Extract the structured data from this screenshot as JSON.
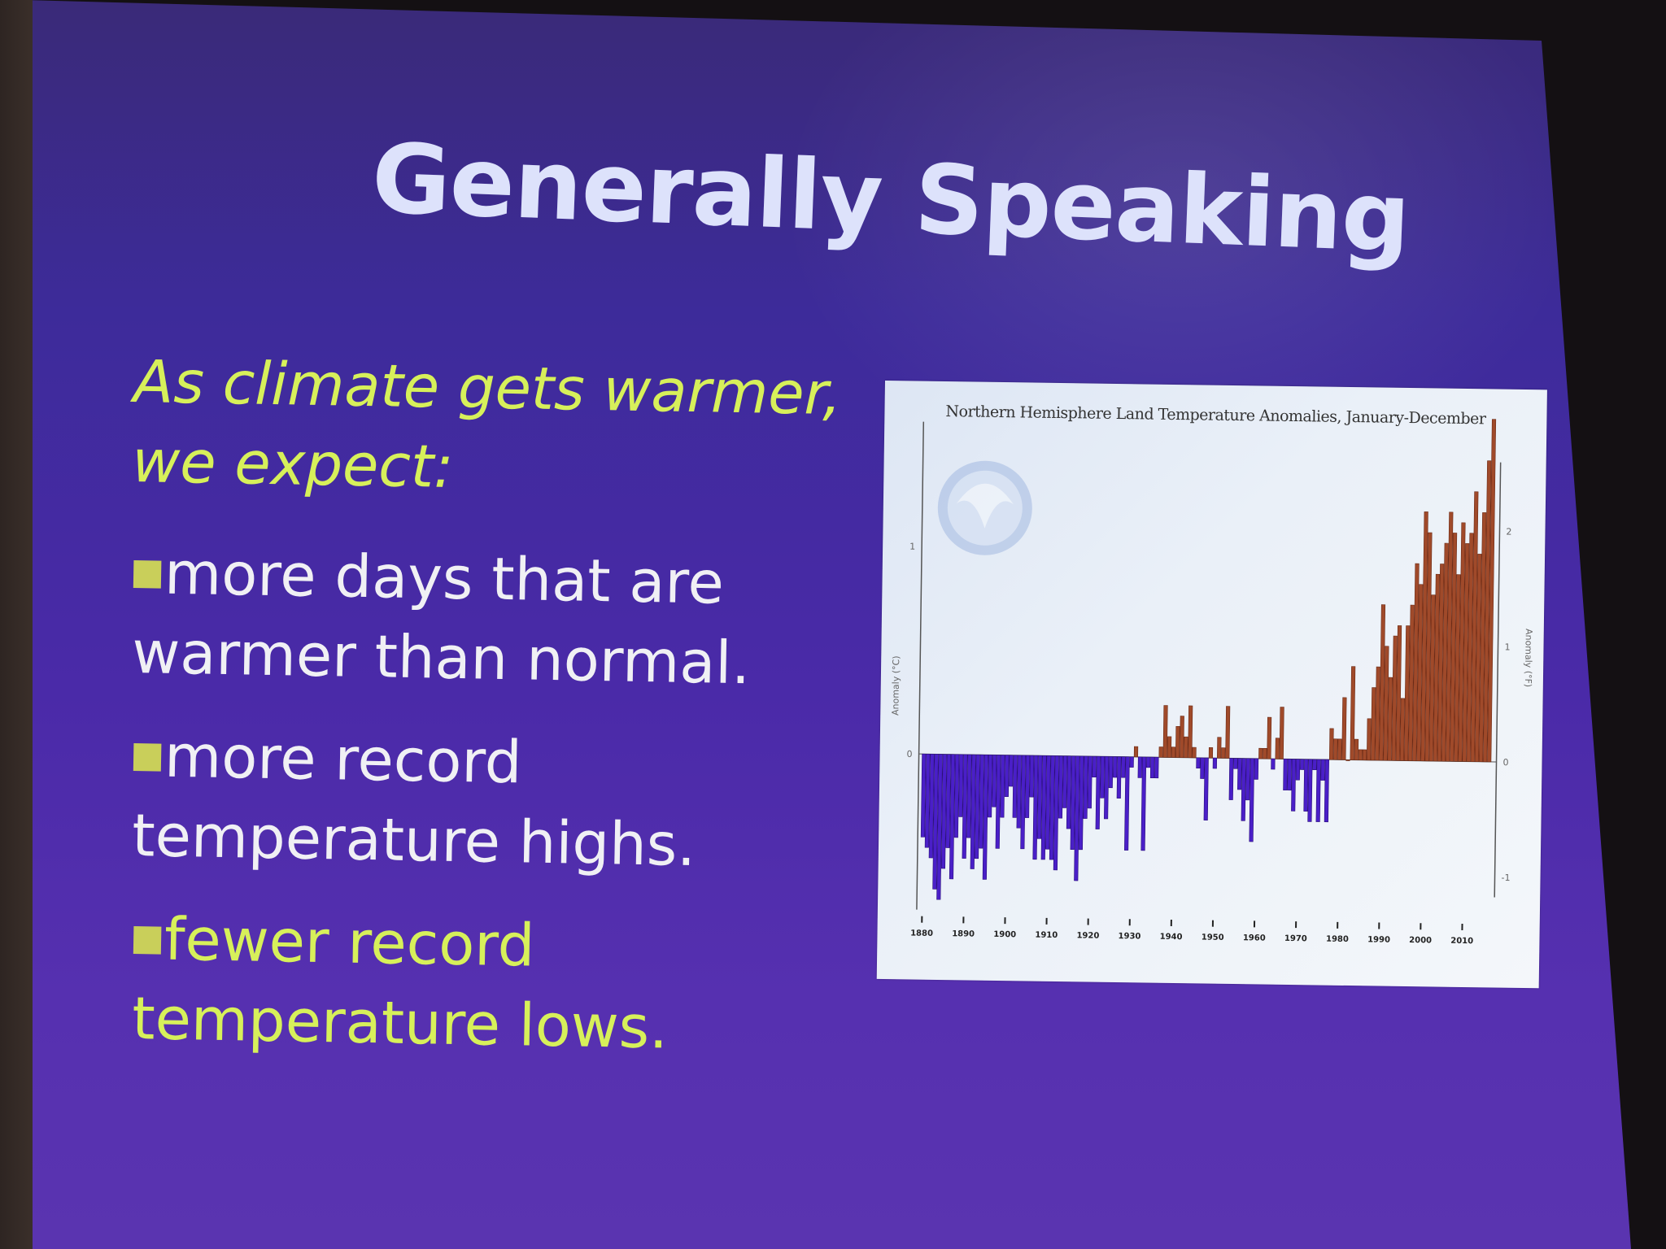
{
  "slide": {
    "title": "Generally Speaking",
    "intro": "As climate gets warmer, we expect:",
    "bullets": [
      {
        "text": "more days that are warmer than normal."
      },
      {
        "text": "more record temperature highs."
      },
      {
        "text": "fewer record temperature lows."
      }
    ]
  },
  "colors": {
    "title": "#dde2fb",
    "highlight": "#d7f05a",
    "body_text": "#f0f0f4",
    "negative_bar": "#4a1fc8",
    "positive_bar": "#a04a2a"
  },
  "logo": {
    "icon": "noaa-logo-icon"
  },
  "chart_data": {
    "type": "bar",
    "title": "Northern Hemisphere Land Temperature Anomalies, January-December",
    "ylabel_left": "Anomaly (°C)",
    "ylabel_right": "Anomaly (°F)",
    "ylim": [
      -0.75,
      1.6
    ],
    "x_ticks": [
      "1880",
      "1890",
      "1900",
      "1910",
      "1920",
      "1930",
      "1940",
      "1950",
      "1960",
      "1970",
      "1980",
      "1990",
      "2000",
      "2010"
    ],
    "left_y_ticks": [
      "1",
      "0"
    ],
    "right_y_ticks": [
      "2",
      "1",
      "0",
      "-1"
    ],
    "x": [
      1880,
      1881,
      1882,
      1883,
      1884,
      1885,
      1886,
      1887,
      1888,
      1889,
      1890,
      1891,
      1892,
      1893,
      1894,
      1895,
      1896,
      1897,
      1898,
      1899,
      1900,
      1901,
      1902,
      1903,
      1904,
      1905,
      1906,
      1907,
      1908,
      1909,
      1910,
      1911,
      1912,
      1913,
      1914,
      1915,
      1916,
      1917,
      1918,
      1919,
      1920,
      1921,
      1922,
      1923,
      1924,
      1925,
      1926,
      1927,
      1928,
      1929,
      1930,
      1931,
      1932,
      1933,
      1934,
      1935,
      1936,
      1937,
      1938,
      1939,
      1940,
      1941,
      1942,
      1943,
      1944,
      1945,
      1946,
      1947,
      1948,
      1949,
      1950,
      1951,
      1952,
      1953,
      1954,
      1955,
      1956,
      1957,
      1958,
      1959,
      1960,
      1961,
      1962,
      1963,
      1964,
      1965,
      1966,
      1967,
      1968,
      1969,
      1970,
      1971,
      1972,
      1973,
      1974,
      1975,
      1976,
      1977,
      1978,
      1979,
      1980,
      1981,
      1982,
      1983,
      1984,
      1985,
      1986,
      1987,
      1988,
      1989,
      1990,
      1991,
      1992,
      1993,
      1994,
      1995,
      1996,
      1997,
      1998,
      1999,
      2000,
      2001,
      2002,
      2003,
      2004,
      2005,
      2006,
      2007,
      2008,
      2009,
      2010,
      2011,
      2012,
      2013,
      2014,
      2015,
      2016
    ],
    "values": [
      -0.4,
      -0.45,
      -0.5,
      -0.65,
      -0.7,
      -0.55,
      -0.45,
      -0.6,
      -0.4,
      -0.3,
      -0.5,
      -0.4,
      -0.55,
      -0.5,
      -0.45,
      -0.6,
      -0.3,
      -0.25,
      -0.45,
      -0.3,
      -0.2,
      -0.15,
      -0.3,
      -0.35,
      -0.45,
      -0.3,
      -0.2,
      -0.5,
      -0.4,
      -0.5,
      -0.45,
      -0.5,
      -0.55,
      -0.3,
      -0.25,
      -0.35,
      -0.45,
      -0.6,
      -0.45,
      -0.3,
      -0.25,
      -0.1,
      -0.35,
      -0.2,
      -0.3,
      -0.15,
      -0.1,
      -0.2,
      -0.1,
      -0.45,
      -0.05,
      0.05,
      -0.1,
      -0.45,
      -0.05,
      -0.1,
      -0.1,
      0.05,
      0.25,
      0.1,
      0.05,
      0.15,
      0.2,
      0.1,
      0.25,
      0.05,
      -0.05,
      -0.1,
      -0.3,
      0.05,
      -0.05,
      0.1,
      0.05,
      0.25,
      -0.2,
      -0.05,
      -0.15,
      -0.3,
      -0.2,
      -0.4,
      -0.1,
      0.05,
      0.05,
      0.2,
      -0.05,
      0.1,
      0.25,
      -0.15,
      -0.15,
      -0.25,
      -0.1,
      -0.05,
      -0.25,
      -0.3,
      -0.05,
      -0.3,
      -0.1,
      -0.3,
      0.15,
      0.1,
      0.1,
      0.3,
      0.0,
      0.45,
      0.1,
      0.05,
      0.05,
      0.2,
      0.35,
      0.45,
      0.75,
      0.55,
      0.4,
      0.6,
      0.65,
      0.3,
      0.65,
      0.75,
      0.95,
      0.85,
      1.2,
      1.1,
      0.8,
      0.9,
      0.95,
      1.05,
      1.2,
      1.1,
      0.9,
      1.15,
      1.05,
      1.1,
      1.3,
      1.0,
      1.2,
      1.45,
      1.65
    ]
  }
}
